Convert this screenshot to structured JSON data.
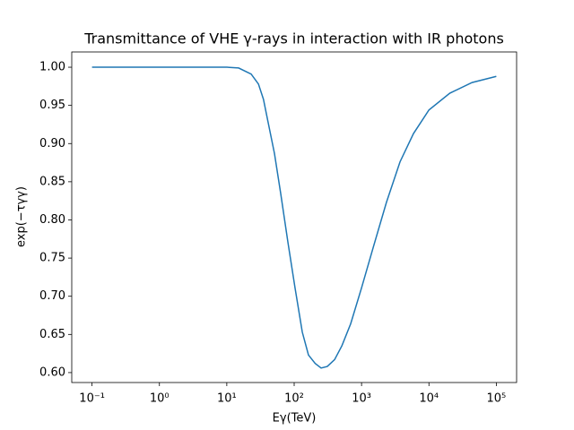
{
  "chart_data": {
    "type": "line",
    "title": "Transmittance of VHE γ-rays in interaction with IR photons",
    "xlabel": "Eγ(TeV)",
    "ylabel": "exp(−τγγ)",
    "xscale": "log",
    "x": [
      0.1,
      1,
      10,
      15,
      23,
      29.5,
      35,
      41,
      51,
      63,
      81,
      103,
      132,
      163,
      205,
      251,
      310,
      398,
      510,
      690,
      1000,
      1490,
      2340,
      3720,
      5890,
      10000,
      20400,
      43700,
      100000
    ],
    "series": [
      {
        "name": "exp(−τγγ)",
        "color": "#1f77b4",
        "values": [
          1.0,
          1.0,
          1.0,
          0.999,
          0.991,
          0.978,
          0.958,
          0.928,
          0.887,
          0.835,
          0.77,
          0.711,
          0.653,
          0.623,
          0.612,
          0.606,
          0.608,
          0.617,
          0.635,
          0.664,
          0.711,
          0.764,
          0.823,
          0.876,
          0.913,
          0.944,
          0.966,
          0.98,
          0.988
        ]
      }
    ],
    "xlim": [
      0.05,
      200000
    ],
    "ylim": [
      0.587,
      1.02
    ],
    "xticks": [
      {
        "value": 0.1,
        "label": "10⁻¹"
      },
      {
        "value": 1,
        "label": "10⁰"
      },
      {
        "value": 10,
        "label": "10¹"
      },
      {
        "value": 100,
        "label": "10²"
      },
      {
        "value": 1000,
        "label": "10³"
      },
      {
        "value": 10000,
        "label": "10⁴"
      },
      {
        "value": 100000,
        "label": "10⁵"
      }
    ],
    "yticks": [
      {
        "value": 0.6,
        "label": "0.60"
      },
      0.65,
      {
        "value": 0.7,
        "label": "0.70"
      },
      0.75,
      {
        "value": 0.8,
        "label": "0.80"
      },
      0.85,
      {
        "value": 0.9,
        "label": "0.90"
      },
      0.95,
      {
        "value": 1.0,
        "label": "1.00"
      }
    ],
    "grid": false
  }
}
